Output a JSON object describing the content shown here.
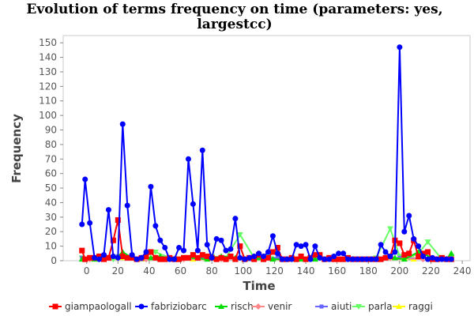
{
  "chart_data": {
    "type": "line",
    "title_line1": "Evolution of terms frequency on time (parameters: yes,",
    "title_line2": "largestcc)",
    "xlabel": "Time",
    "ylabel": "Frequency",
    "xlim": [
      -15,
      245
    ],
    "ylim": [
      0,
      155
    ],
    "xticks": [
      0,
      20,
      40,
      60,
      80,
      100,
      120,
      140,
      160,
      180,
      200,
      220,
      240
    ],
    "yticks": [
      0,
      10,
      20,
      30,
      40,
      50,
      60,
      70,
      80,
      90,
      100,
      110,
      120,
      130,
      140,
      150
    ],
    "legend_position": "bottom",
    "series": [
      {
        "name": "giampaologall",
        "color": "#ff0000",
        "marker": "square",
        "x": [
          -3,
          -1,
          2,
          5,
          8,
          11,
          14,
          17,
          20,
          23,
          26,
          29,
          32,
          35,
          38,
          41,
          44,
          47,
          50,
          53,
          56,
          59,
          62,
          65,
          68,
          71,
          74,
          77,
          80,
          83,
          86,
          89,
          92,
          95,
          98,
          101,
          104,
          107,
          110,
          113,
          116,
          119,
          122,
          125,
          128,
          131,
          134,
          137,
          140,
          143,
          146,
          149,
          152,
          155,
          158,
          161,
          164,
          167,
          170,
          173,
          176,
          179,
          182,
          185,
          188,
          191,
          194,
          197,
          200,
          203,
          206,
          209,
          212,
          215,
          218,
          221,
          224,
          227,
          230,
          233
        ],
        "y": [
          7,
          1,
          2,
          2,
          3,
          1,
          2,
          14,
          28,
          3,
          2,
          2,
          1,
          2,
          3,
          6,
          2,
          1,
          1,
          2,
          1,
          1,
          2,
          2,
          4,
          2,
          4,
          3,
          2,
          1,
          2,
          1,
          3,
          1,
          10,
          1,
          2,
          1,
          4,
          1,
          2,
          6,
          9,
          1,
          1,
          2,
          1,
          3,
          1,
          2,
          4,
          4,
          1,
          2,
          1,
          1,
          1,
          2,
          1,
          1,
          1,
          1,
          1,
          1,
          1,
          2,
          3,
          14,
          12,
          4,
          5,
          14,
          3,
          5,
          6,
          1,
          1,
          2,
          1,
          1
        ]
      },
      {
        "name": "fabriziobarc",
        "color": "#0000ff",
        "marker": "circle",
        "x": [
          -3,
          -1,
          2,
          5,
          8,
          11,
          14,
          17,
          20,
          23,
          26,
          29,
          32,
          35,
          38,
          41,
          44,
          47,
          50,
          53,
          56,
          59,
          62,
          65,
          68,
          71,
          74,
          77,
          80,
          83,
          86,
          89,
          92,
          95,
          98,
          101,
          104,
          107,
          110,
          113,
          116,
          119,
          122,
          125,
          128,
          131,
          134,
          137,
          140,
          143,
          146,
          149,
          152,
          155,
          158,
          161,
          164,
          167,
          170,
          173,
          176,
          179,
          182,
          185,
          188,
          191,
          194,
          197,
          200,
          203,
          206,
          209,
          212,
          215,
          218,
          221,
          224,
          227,
          230,
          233
        ],
        "y": [
          25,
          56,
          26,
          2,
          1,
          4,
          35,
          3,
          2,
          94,
          38,
          4,
          1,
          2,
          6,
          51,
          24,
          14,
          9,
          1,
          1,
          9,
          7,
          70,
          39,
          7,
          76,
          11,
          2,
          15,
          14,
          7,
          8,
          29,
          2,
          1,
          2,
          3,
          5,
          3,
          6,
          17,
          5,
          1,
          1,
          1,
          11,
          10,
          11,
          1,
          10,
          2,
          1,
          1,
          3,
          5,
          5,
          1,
          1,
          1,
          1,
          1,
          1,
          1,
          11,
          6,
          3,
          6,
          147,
          20,
          31,
          15,
          10,
          3,
          1,
          2,
          1,
          1,
          1,
          1
        ]
      },
      {
        "name": "risch",
        "color": "#00dd00",
        "marker": "triangle-up",
        "x": [
          -3,
          5,
          14,
          20,
          23,
          29,
          41,
          47,
          56,
          65,
          77,
          86,
          95,
          101,
          110,
          119,
          128,
          137,
          146,
          155,
          170,
          182,
          191,
          197,
          203,
          212,
          221,
          230,
          233
        ],
        "y": [
          1,
          1,
          2,
          3,
          6,
          2,
          2,
          3,
          1,
          2,
          1,
          3,
          2,
          1,
          2,
          1,
          1,
          1,
          1,
          1,
          1,
          1,
          2,
          2,
          1,
          6,
          2,
          1,
          5
        ]
      },
      {
        "name": "venir",
        "color": "#ff8888",
        "marker": "diamond",
        "x": [
          2,
          20,
          38,
          62,
          86,
          113,
          140,
          167,
          194,
          215
        ],
        "y": [
          1,
          2,
          1,
          1,
          1,
          1,
          1,
          1,
          2,
          1
        ]
      },
      {
        "name": "aiuti",
        "color": "#6666ff",
        "marker": "square-small",
        "x": [
          -3,
          11,
          20,
          35,
          44,
          59,
          74,
          89,
          104,
          122,
          143,
          161,
          179,
          200,
          224
        ],
        "y": [
          2,
          1,
          3,
          1,
          2,
          1,
          2,
          1,
          1,
          2,
          1,
          1,
          1,
          2,
          1
        ]
      },
      {
        "name": "parla",
        "color": "#66ff66",
        "marker": "triangle-down",
        "x": [
          -3,
          8,
          17,
          23,
          32,
          44,
          53,
          62,
          71,
          80,
          89,
          98,
          107,
          116,
          125,
          134,
          143,
          152,
          164,
          176,
          185,
          194,
          200,
          206,
          212,
          218,
          227,
          233
        ],
        "y": [
          2,
          1,
          1,
          3,
          1,
          6,
          2,
          1,
          2,
          3,
          2,
          18,
          2,
          3,
          1,
          1,
          2,
          1,
          1,
          1,
          2,
          22,
          3,
          2,
          5,
          13,
          1,
          2
        ]
      },
      {
        "name": "raggi",
        "color": "#ffff00",
        "marker": "triangle-up",
        "x": [
          5,
          35,
          68,
          101,
          134,
          170,
          209
        ],
        "y": [
          1,
          1,
          1,
          1,
          1,
          1,
          1
        ]
      }
    ]
  }
}
